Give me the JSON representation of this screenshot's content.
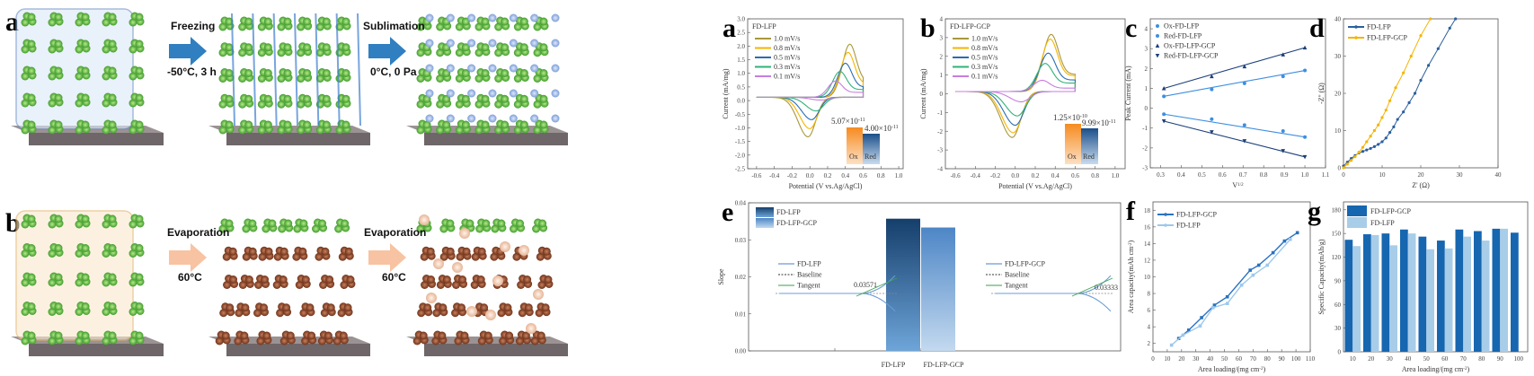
{
  "schematic": {
    "row_a": {
      "label": "a",
      "step1": "Freezing",
      "cond1": "-50°C, 3 h",
      "step2": "Sublimation",
      "cond2": "0°C, 0 Pa"
    },
    "row_b": {
      "label": "b",
      "step1": "Evaporation",
      "cond1": "60°C",
      "step2": "Evaporation",
      "cond2": "60°C"
    },
    "colors": {
      "freeze_arrow": "#2f7fc1",
      "evap_arrow": "#f7c3a2",
      "particle": "#6cc04a",
      "substrate": "#6e6668"
    }
  },
  "chart_data": [
    {
      "id": "a",
      "type": "line",
      "title": "FD-LFP",
      "xlabel": "Potential (V vs.Ag/AgCl)",
      "ylabel": "Current (mA/mg)",
      "xlim": [
        -0.7,
        1.05
      ],
      "ylim": [
        -2.5,
        3.0
      ],
      "xticks": [
        -0.6,
        -0.4,
        -0.2,
        0.0,
        0.2,
        0.4,
        0.6,
        0.8,
        1.0
      ],
      "yticks": [
        -2.5,
        -2.0,
        -1.5,
        -1.0,
        -0.5,
        0.0,
        0.5,
        1.0,
        1.5,
        2.0,
        2.5,
        3.0
      ],
      "series": [
        {
          "name": "1.0 mV/s",
          "color": "#a8983a",
          "ox_E": 0.45,
          "ox_I": 1.95,
          "red_E": -0.02,
          "red_I": -1.45
        },
        {
          "name": "0.8 mV/s",
          "color": "#f5b400",
          "ox_E": 0.43,
          "ox_I": 1.65,
          "red_E": 0.0,
          "red_I": -1.15
        },
        {
          "name": "0.5 mV/s",
          "color": "#2a6db0",
          "ox_E": 0.4,
          "ox_I": 1.25,
          "red_E": 0.02,
          "red_I": -0.82
        },
        {
          "name": "0.3 mV/s",
          "color": "#2fb37a",
          "ox_E": 0.34,
          "ox_I": 0.95,
          "red_E": 0.07,
          "red_I": -0.5
        },
        {
          "name": "0.1 mV/s",
          "color": "#c77ee0",
          "ox_E": 0.29,
          "ox_I": 0.6,
          "red_E": 0.12,
          "red_I": -0.1
        }
      ],
      "inset": {
        "ox_label": "Ox",
        "red_label": "Red",
        "ox_value": "5.07×10",
        "ox_exp": "-11",
        "red_value": "4.00×10",
        "red_exp": "-11",
        "ox_num": 5.07e-11,
        "red_num": 4e-11
      }
    },
    {
      "id": "b",
      "type": "line",
      "title": "FD-LFP-GCP",
      "xlabel": "Potential (V vs.Ag/AgCl)",
      "ylabel": "Current (mA/mg)",
      "xlim": [
        -0.7,
        1.1
      ],
      "ylim": [
        -4,
        4
      ],
      "xticks": [
        -0.6,
        -0.4,
        -0.2,
        0.0,
        0.2,
        0.4,
        0.6,
        0.8,
        1.0
      ],
      "yticks": [
        -4,
        -3,
        -2,
        -1,
        0,
        1,
        2,
        3,
        4
      ],
      "series": [
        {
          "name": "1.0 mV/s",
          "color": "#a8983a",
          "ox_E": 0.36,
          "ox_I": 3.05,
          "red_E": -0.03,
          "red_I": -2.45
        },
        {
          "name": "0.8 mV/s",
          "color": "#f5b400",
          "ox_E": 0.35,
          "ox_I": 2.8,
          "red_E": -0.02,
          "red_I": -2.2
        },
        {
          "name": "0.5 mV/s",
          "color": "#2a6db0",
          "ox_E": 0.33,
          "ox_I": 2.05,
          "red_E": 0.0,
          "red_I": -1.8
        },
        {
          "name": "0.3 mV/s",
          "color": "#2fb37a",
          "ox_E": 0.3,
          "ox_I": 1.5,
          "red_E": 0.02,
          "red_I": -1.3
        },
        {
          "name": "0.1 mV/s",
          "color": "#c77ee0",
          "ox_E": 0.27,
          "ox_I": 0.6,
          "red_E": 0.06,
          "red_I": -0.55
        }
      ],
      "inset": {
        "ox_label": "Ox",
        "red_label": "Red",
        "ox_value": "1.25×10",
        "ox_exp": "-10",
        "red_value": "9.99×10",
        "red_exp": "-11",
        "ox_num": 1.25e-10,
        "red_num": 9.99e-11
      }
    },
    {
      "id": "c",
      "type": "scatter",
      "xlabel": "V",
      "xlabel_sup": "1/2",
      "ylabel": "Peak Current (mA)",
      "xlim": [
        0.25,
        1.1
      ],
      "ylim": [
        -3,
        4.5
      ],
      "xticks": [
        0.3,
        0.4,
        0.5,
        0.6,
        0.7,
        0.8,
        0.9,
        1.0,
        1.1
      ],
      "yticks": [
        -3,
        -2,
        -1,
        0,
        1,
        2,
        3,
        4
      ],
      "x": [
        0.316,
        0.548,
        0.707,
        0.894,
        1.0
      ],
      "series": [
        {
          "name": "Ox-FD-LFP",
          "color": "#3d8fe0",
          "marker": "circle",
          "values": [
            0.6,
            0.95,
            1.25,
            1.6,
            1.9
          ]
        },
        {
          "name": "Red-FD-LFP",
          "color": "#3d8fe0",
          "marker": "circle",
          "values": [
            -0.3,
            -0.55,
            -0.85,
            -1.15,
            -1.45
          ]
        },
        {
          "name": "Ox-FD-LFP-GCP",
          "color": "#1b3f7a",
          "marker": "triangle-up",
          "values": [
            1.0,
            1.6,
            2.1,
            2.7,
            3.05
          ]
        },
        {
          "name": "Red-FD-LFP-GCP",
          "color": "#1b3f7a",
          "marker": "triangle-down",
          "values": [
            -0.65,
            -1.2,
            -1.65,
            -2.15,
            -2.45
          ]
        }
      ]
    },
    {
      "id": "d",
      "type": "line",
      "xlabel": "Z' (Ω)",
      "ylabel": "-Z'' (Ω)",
      "xlim": [
        0,
        40
      ],
      "ylim": [
        0,
        40
      ],
      "xticks": [
        0,
        10,
        20,
        30,
        40
      ],
      "yticks": [
        0,
        10,
        20,
        30,
        40
      ],
      "series": [
        {
          "name": "FD-LFP",
          "color": "#2a5f9e",
          "points": [
            [
              0,
              0.5
            ],
            [
              1,
              1.5
            ],
            [
              2,
              2.5
            ],
            [
              3,
              3.3
            ],
            [
              4,
              4
            ],
            [
              5,
              4.4
            ],
            [
              6,
              4.8
            ],
            [
              7,
              5.2
            ],
            [
              8,
              5.7
            ],
            [
              9,
              6.3
            ],
            [
              10,
              7
            ],
            [
              11,
              8
            ],
            [
              12,
              9.5
            ],
            [
              13,
              11
            ],
            [
              14,
              13
            ],
            [
              15.5,
              15
            ],
            [
              17,
              17.5
            ],
            [
              18.5,
              20
            ],
            [
              20,
              23.5
            ],
            [
              22,
              27.5
            ],
            [
              24.5,
              32
            ],
            [
              27.5,
              37.5
            ],
            [
              29,
              40
            ]
          ]
        },
        {
          "name": "FD-LFP-GCP",
          "color": "#f5b400",
          "points": [
            [
              0,
              0
            ],
            [
              1,
              1
            ],
            [
              2,
              2
            ],
            [
              3,
              3
            ],
            [
              4,
              4.2
            ],
            [
              5,
              5.5
            ],
            [
              6,
              7
            ],
            [
              7,
              8.5
            ],
            [
              8,
              10
            ],
            [
              9,
              11.5
            ],
            [
              10,
              13.5
            ],
            [
              11,
              15.5
            ],
            [
              12,
              18
            ],
            [
              13.5,
              21.5
            ],
            [
              15.5,
              25.5
            ],
            [
              17.5,
              30
            ],
            [
              20,
              35.5
            ],
            [
              22.5,
              40
            ]
          ]
        }
      ]
    },
    {
      "id": "e",
      "type": "bar",
      "ylabel": "Slope",
      "ylim": [
        0,
        0.04
      ],
      "yticks": [
        0.0,
        0.01,
        0.02,
        0.03,
        0.04
      ],
      "categories": [
        "FD-LFP",
        "FD-LFP-GCP"
      ],
      "values": [
        0.03571,
        0.03333
      ],
      "colors": [
        "#1d4f85",
        "#5b93cf"
      ],
      "insets": [
        {
          "curve": "FD-LFP",
          "baseline": "Baseline",
          "tangent": "Tangent",
          "value": "0.03571"
        },
        {
          "curve": "FD-LFP-GCP",
          "baseline": "Baseline",
          "tangent": "Tangent",
          "value": "0.03333"
        }
      ]
    },
    {
      "id": "f",
      "type": "line",
      "xlabel": "Area loading/(mg cm",
      "xlabel_sup": "-2",
      "ylabel": "Area capacity(mAh cm",
      "ylabel_sup": "-2",
      "xlim": [
        0,
        110
      ],
      "ylim": [
        1,
        19
      ],
      "xticks": [
        0,
        10,
        20,
        30,
        40,
        50,
        60,
        70,
        80,
        90,
        100,
        110
      ],
      "yticks": [
        2,
        4,
        6,
        8,
        10,
        12,
        14,
        16,
        18
      ],
      "series": [
        {
          "name": "FD-LFP-GCP",
          "color": "#2a72c0",
          "points": [
            [
              18,
              2.6
            ],
            [
              25,
              3.6
            ],
            [
              34,
              5.1
            ],
            [
              43,
              6.6
            ],
            [
              52,
              7.6
            ],
            [
              68,
              10.8
            ],
            [
              74,
              11.4
            ],
            [
              84,
              12.9
            ],
            [
              92,
              14.3
            ],
            [
              101,
              15.3
            ]
          ]
        },
        {
          "name": "FD-LFP",
          "color": "#9cc8ec",
          "points": [
            [
              13,
              1.8
            ],
            [
              21,
              3.0
            ],
            [
              33,
              4.1
            ],
            [
              42,
              6.3
            ],
            [
              52,
              6.8
            ],
            [
              62,
              9.0
            ],
            [
              70,
              10.2
            ],
            [
              80,
              11.4
            ],
            [
              96,
              14.5
            ]
          ]
        }
      ]
    },
    {
      "id": "g",
      "type": "bar",
      "xlabel": "Area loading/(mg cm",
      "xlabel_sup": "-2",
      "ylabel": "Specific Capacity(mAh/g)",
      "ylim": [
        0,
        190
      ],
      "yticks": [
        0,
        30,
        60,
        90,
        120,
        150,
        180
      ],
      "categories": [
        "10",
        "20",
        "30",
        "40",
        "50",
        "60",
        "70",
        "80",
        "90",
        "100"
      ],
      "series": [
        {
          "name": "FD-LFP-GCP",
          "color": "#1666b0",
          "values": [
            142,
            149,
            150,
            155,
            146,
            141,
            155,
            153,
            156,
            151
          ]
        },
        {
          "name": "FD-LFP",
          "color": "#a8cde9",
          "values": [
            134,
            148,
            135,
            150,
            130,
            131,
            146,
            141,
            156,
            null
          ]
        }
      ]
    }
  ]
}
